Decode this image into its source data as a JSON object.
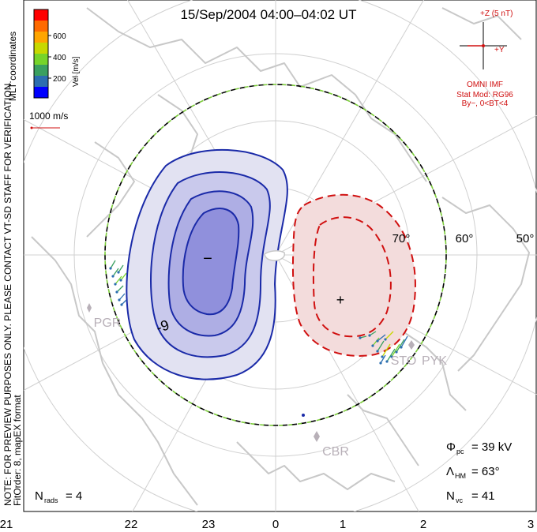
{
  "title": "15/Sep/2004 04:00–04:02 UT",
  "coordinate_system": "MLT coordinates",
  "colorbar": {
    "label": "Vel [m/s]",
    "ticks": [
      "600",
      "400",
      "200"
    ],
    "colors": [
      "#ff0000",
      "#ff6a00",
      "#ffa500",
      "#c8d800",
      "#77d42a",
      "#3aa060",
      "#2c6eb0",
      "#0000ff"
    ]
  },
  "velocity_reference": "1000 m/s",
  "imf": {
    "z_label": "+Z (5 nT)",
    "y_label": "+Y",
    "source": "OMNI IMF",
    "model": "Stat Mod: RG96",
    "condition": "By−, 0<BT<4"
  },
  "latitude_labels": [
    "70°",
    "60°",
    "50°"
  ],
  "mlt_labels": [
    "21",
    "22",
    "23",
    "0",
    "1",
    "2",
    "3"
  ],
  "stations": [
    "PGR",
    "STO",
    "PYK",
    "CBR"
  ],
  "contour_label": "-9",
  "dusk_cell_symbol": "−",
  "dawn_cell_symbol": "+",
  "notes": {
    "line1": "NOTE: FOR PREVIEW PURPOSES ONLY. PLEASE CONTACT VT-SD STAFF FOR VERIFICATION.",
    "line2": "FitOrder: 8, mapEX format"
  },
  "stats": {
    "phi_pc": {
      "symbol": "Φ",
      "sub": "pc",
      "value": "= 39 kV"
    },
    "lambda_hm": {
      "symbol": "Λ",
      "sub": "HM",
      "value": "= 63°"
    },
    "n_vc": {
      "symbol": "N",
      "sub": "vc",
      "value": "= 41"
    },
    "n_rads": {
      "symbol": "N",
      "sub": "rads",
      "value": "= 4"
    }
  },
  "colors": {
    "dusk_cell": "#1a2aa8",
    "dawn_cell": "#d01010",
    "boundary_dash": "#7ccd3a",
    "coastline": "#c8c8c8",
    "grid": "#d0d0d0"
  }
}
